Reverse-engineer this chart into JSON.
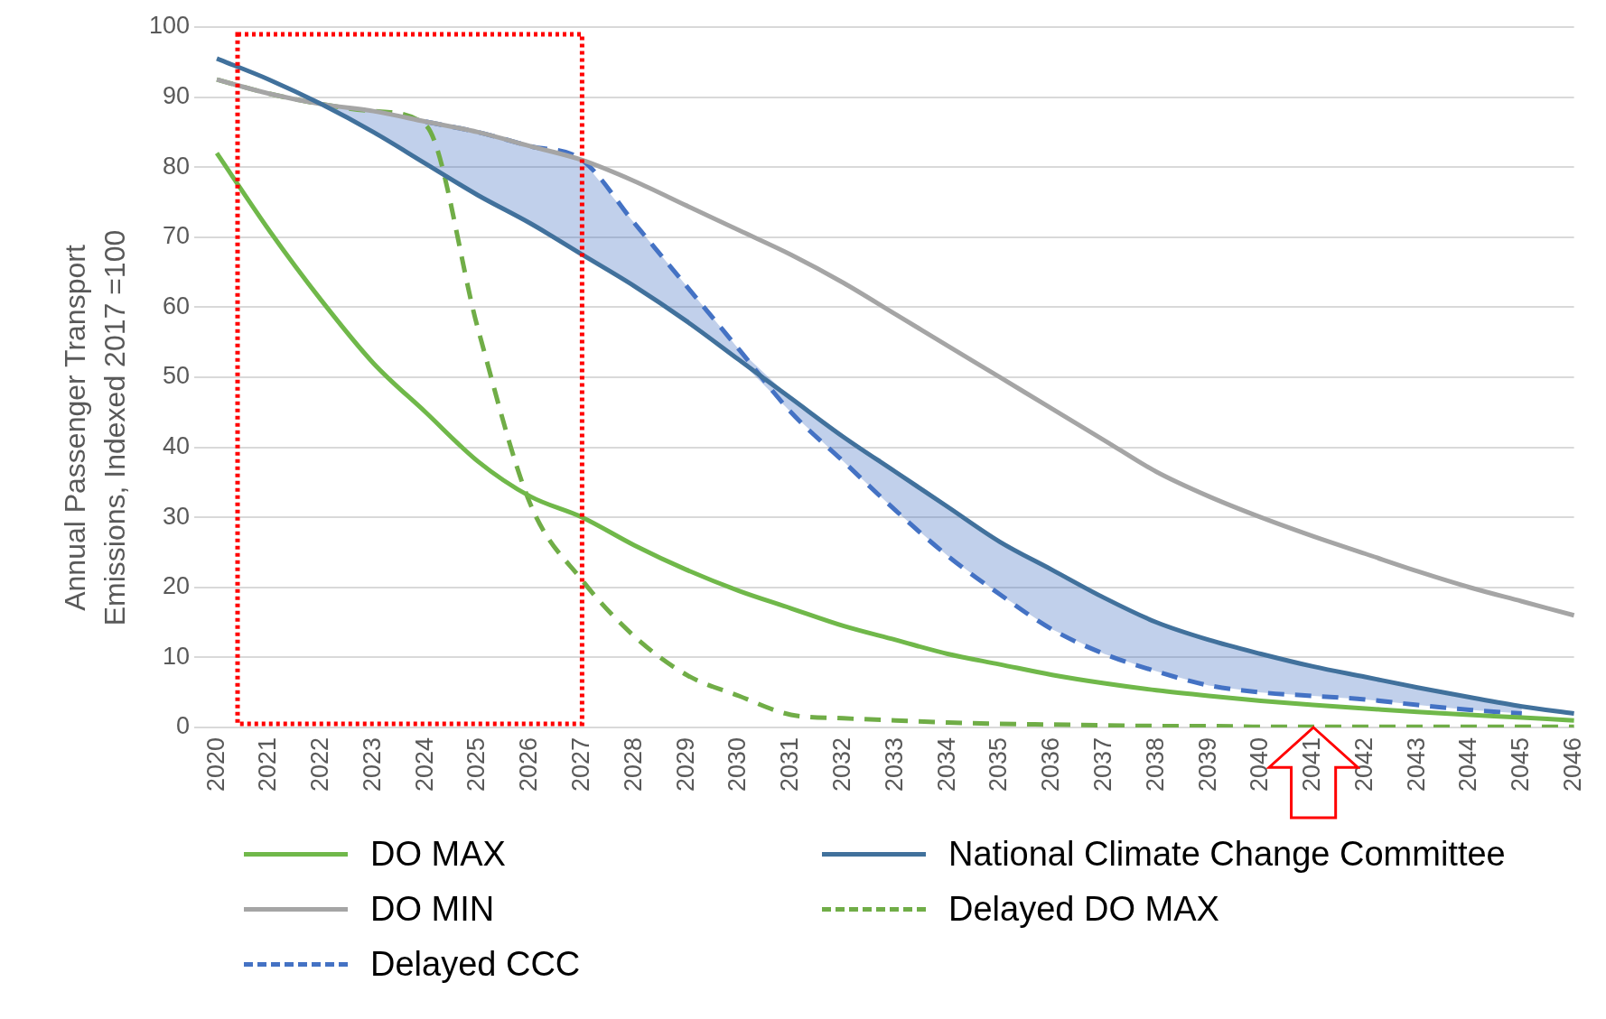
{
  "chart_data": {
    "type": "line",
    "ylabel": "Annual Passenger Transport Emissions, Indexed 2017 =100",
    "categories": [
      "2020",
      "2021",
      "2022",
      "2023",
      "2024",
      "2025",
      "2026",
      "2027",
      "2028",
      "2029",
      "2030",
      "2031",
      "2032",
      "2033",
      "2034",
      "2035",
      "2036",
      "2037",
      "2038",
      "2039",
      "2040",
      "2041",
      "2042",
      "2043",
      "2044",
      "2045",
      "2046"
    ],
    "ylim": [
      0,
      100
    ],
    "yticks": [
      0,
      10,
      20,
      30,
      40,
      50,
      60,
      70,
      80,
      90,
      100
    ],
    "grid": "y",
    "legend": "bottom",
    "marker": "none",
    "series": [
      {
        "name": "DO MAX",
        "color": "#70b84a",
        "line_style": "solid",
        "values": [
          82,
          71,
          61,
          52,
          45,
          38,
          33,
          30,
          26,
          22.5,
          19.5,
          17,
          14.5,
          12.5,
          10.5,
          9,
          7.5,
          6.3,
          5.3,
          4.5,
          3.8,
          3.2,
          2.7,
          2.2,
          1.8,
          1.4,
          1
        ]
      },
      {
        "name": "National Climate Change Committee",
        "color": "#41719c",
        "line_style": "solid",
        "values": [
          95.5,
          92.5,
          89,
          85,
          80.5,
          76,
          72,
          67.5,
          63,
          58,
          52.5,
          47,
          41.5,
          36.5,
          31.5,
          26.5,
          22.5,
          18.5,
          15,
          12.5,
          10.5,
          8.7,
          7.2,
          5.7,
          4.3,
          3,
          2
        ]
      },
      {
        "name": "DO MIN",
        "color": "#a5a5a5",
        "line_style": "solid",
        "values": [
          92.5,
          90.5,
          89,
          88,
          86.5,
          85,
          83,
          81,
          78,
          74.5,
          71,
          67.5,
          63.5,
          59,
          54.5,
          50,
          45.5,
          41,
          36.5,
          33,
          30,
          27.3,
          24.8,
          22.3,
          20,
          18,
          16
        ]
      },
      {
        "name": "Delayed DO MAX",
        "color": "#70ad47",
        "line_style": "dashed",
        "values": [
          92.5,
          90.5,
          89,
          88,
          86,
          57,
          32,
          21,
          13,
          7.5,
          4.5,
          1.8,
          1.3,
          1,
          0.7,
          0.5,
          0.4,
          0.3,
          0.2,
          0.2,
          0.1,
          0.1,
          0.1,
          0.1,
          0.1,
          0.1,
          0.1
        ]
      },
      {
        "name": "Delayed CCC",
        "color": "#4472c4",
        "line_style": "dashed",
        "values": [
          null,
          null,
          null,
          null,
          86.5,
          85,
          83,
          81,
          72,
          63,
          54,
          45,
          38,
          31,
          24.5,
          19,
          14,
          10.5,
          8,
          6,
          5,
          4.5,
          4,
          3.2,
          2.5,
          2,
          null
        ],
        "lower": [
          null,
          null,
          89,
          85,
          80.5,
          76,
          72,
          67.5,
          63,
          58,
          52.5,
          45,
          38,
          31,
          24.5,
          19,
          14,
          10.5,
          8,
          6,
          5,
          4.5,
          4,
          3.2,
          2.5,
          2,
          null
        ],
        "upper": [
          null,
          null,
          89,
          88,
          86.5,
          85,
          83,
          81,
          72,
          63,
          54,
          47,
          41.5,
          36.5,
          31.5,
          26.5,
          22.5,
          18.5,
          15,
          12.5,
          10.5,
          8.7,
          7.2,
          5.7,
          4.3,
          3,
          null
        ]
      }
    ]
  }
}
